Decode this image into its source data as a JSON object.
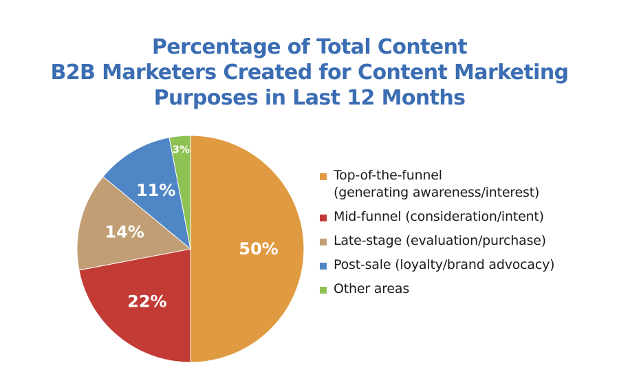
{
  "title_lines": [
    "Percentage of Total Content",
    "B2B Marketers Created for Content Marketing",
    "Purposes in Last 12 Months"
  ],
  "chart_data": {
    "type": "pie",
    "title": "Percentage of Total Content B2B Marketers Created for Content Marketing Purposes in Last 12 Months",
    "legend_position": "right",
    "slices": [
      {
        "label": "Top-of-the-funnel\n(generating awareness/interest)",
        "value": 50,
        "display": "50%",
        "color": "#e09a41"
      },
      {
        "label": "Mid-funnel (consideration/intent)",
        "value": 22,
        "display": "22%",
        "color": "#c23b35"
      },
      {
        "label": "Late-stage (evaluation/purchase)",
        "value": 14,
        "display": "14%",
        "color": "#c19e74"
      },
      {
        "label": "Post-sale (loyalty/brand advocacy)",
        "value": 11,
        "display": "11%",
        "color": "#4f86c6"
      },
      {
        "label": "Other areas",
        "value": 3,
        "display": "3%",
        "color": "#8fc254"
      }
    ]
  }
}
